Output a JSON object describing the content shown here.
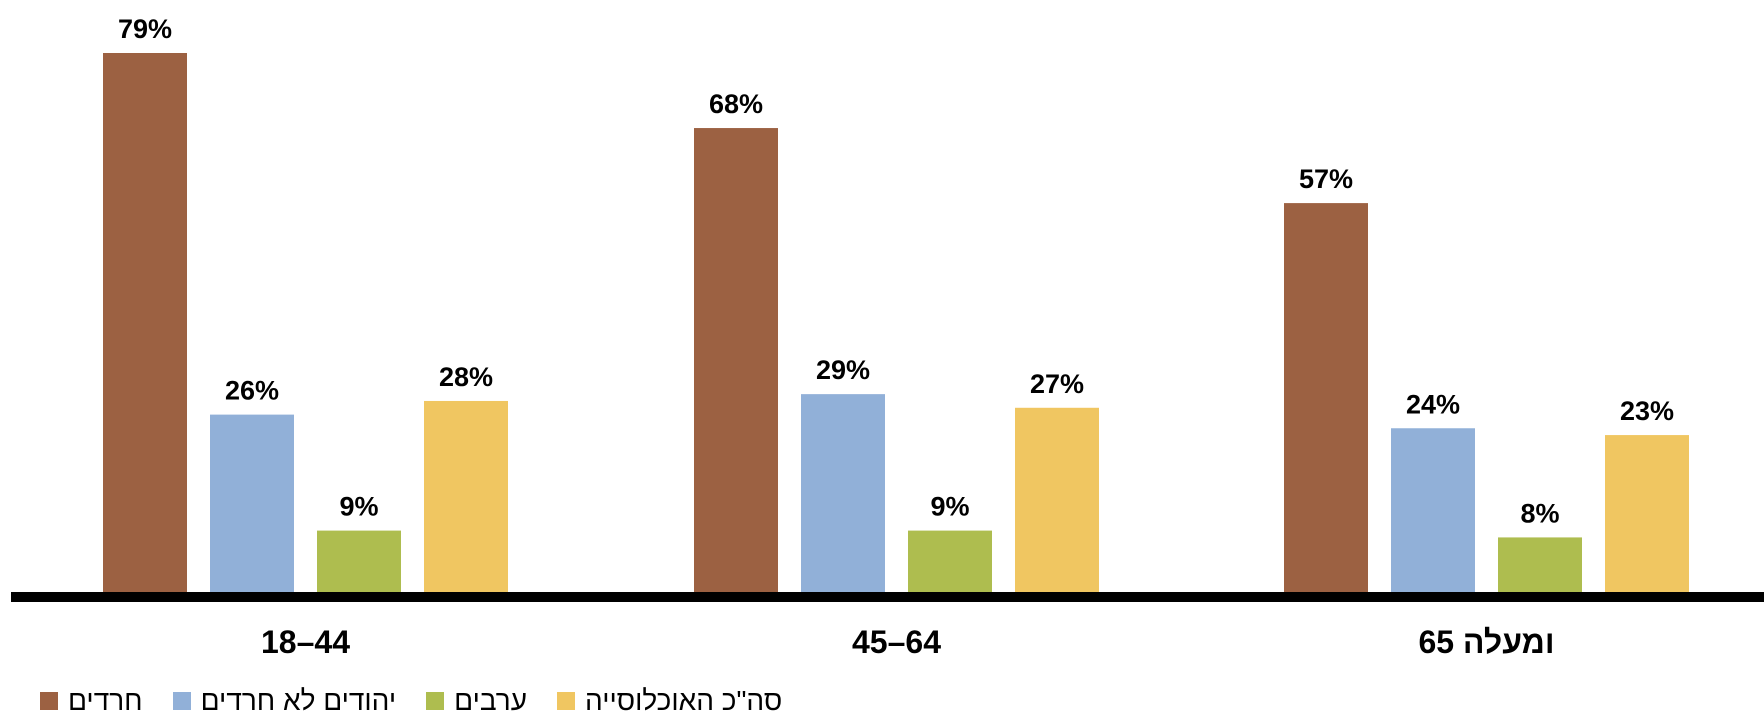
{
  "chart_data": {
    "type": "bar",
    "categories": [
      "18–44",
      "45–64",
      "65 ומעלה"
    ],
    "series": [
      {
        "name": "חרדים",
        "values": [
          79,
          68,
          57
        ],
        "color": "#9C6142"
      },
      {
        "name": "יהודים לא חרדים",
        "values": [
          26,
          29,
          24
        ],
        "color": "#91B0D8"
      },
      {
        "name": "ערבים",
        "values": [
          9,
          9,
          8
        ],
        "color": "#AEBD4F"
      },
      {
        "name": "סה\"כ האוכלוסייה",
        "values": [
          28,
          27,
          23
        ],
        "color": "#F0C661"
      }
    ],
    "value_suffix": "%",
    "title": "",
    "xlabel": "",
    "ylabel": "",
    "ylim": [
      0,
      79
    ],
    "grid": false,
    "y_axis_visible": false,
    "legend_position": "bottom-left",
    "axis_line_color": "#000000"
  }
}
